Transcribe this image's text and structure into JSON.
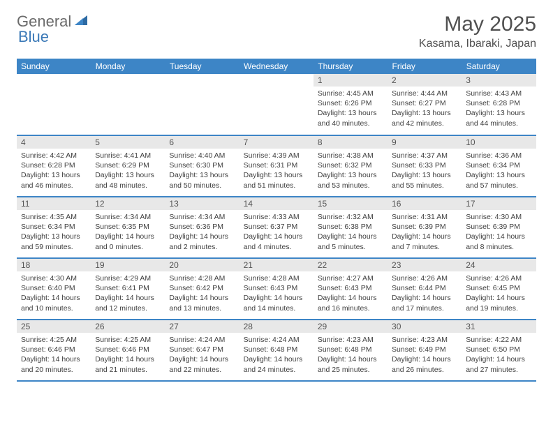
{
  "brand": {
    "part1": "General",
    "part2": "Blue"
  },
  "title": "May 2025",
  "location": "Kasama, Ibaraki, Japan",
  "colors": {
    "header_bg": "#3d85c6",
    "header_text": "#ffffff",
    "daynum_bg": "#e8e8e8",
    "text": "#404040",
    "row_divider": "#3d85c6"
  },
  "layout": {
    "cols": 7,
    "rows": 5,
    "first_day_col": 4
  },
  "weekdays": [
    "Sunday",
    "Monday",
    "Tuesday",
    "Wednesday",
    "Thursday",
    "Friday",
    "Saturday"
  ],
  "days": [
    {
      "n": 1,
      "sunrise": "4:45 AM",
      "sunset": "6:26 PM",
      "daylight": "13 hours and 40 minutes."
    },
    {
      "n": 2,
      "sunrise": "4:44 AM",
      "sunset": "6:27 PM",
      "daylight": "13 hours and 42 minutes."
    },
    {
      "n": 3,
      "sunrise": "4:43 AM",
      "sunset": "6:28 PM",
      "daylight": "13 hours and 44 minutes."
    },
    {
      "n": 4,
      "sunrise": "4:42 AM",
      "sunset": "6:28 PM",
      "daylight": "13 hours and 46 minutes."
    },
    {
      "n": 5,
      "sunrise": "4:41 AM",
      "sunset": "6:29 PM",
      "daylight": "13 hours and 48 minutes."
    },
    {
      "n": 6,
      "sunrise": "4:40 AM",
      "sunset": "6:30 PM",
      "daylight": "13 hours and 50 minutes."
    },
    {
      "n": 7,
      "sunrise": "4:39 AM",
      "sunset": "6:31 PM",
      "daylight": "13 hours and 51 minutes."
    },
    {
      "n": 8,
      "sunrise": "4:38 AM",
      "sunset": "6:32 PM",
      "daylight": "13 hours and 53 minutes."
    },
    {
      "n": 9,
      "sunrise": "4:37 AM",
      "sunset": "6:33 PM",
      "daylight": "13 hours and 55 minutes."
    },
    {
      "n": 10,
      "sunrise": "4:36 AM",
      "sunset": "6:34 PM",
      "daylight": "13 hours and 57 minutes."
    },
    {
      "n": 11,
      "sunrise": "4:35 AM",
      "sunset": "6:34 PM",
      "daylight": "13 hours and 59 minutes."
    },
    {
      "n": 12,
      "sunrise": "4:34 AM",
      "sunset": "6:35 PM",
      "daylight": "14 hours and 0 minutes."
    },
    {
      "n": 13,
      "sunrise": "4:34 AM",
      "sunset": "6:36 PM",
      "daylight": "14 hours and 2 minutes."
    },
    {
      "n": 14,
      "sunrise": "4:33 AM",
      "sunset": "6:37 PM",
      "daylight": "14 hours and 4 minutes."
    },
    {
      "n": 15,
      "sunrise": "4:32 AM",
      "sunset": "6:38 PM",
      "daylight": "14 hours and 5 minutes."
    },
    {
      "n": 16,
      "sunrise": "4:31 AM",
      "sunset": "6:39 PM",
      "daylight": "14 hours and 7 minutes."
    },
    {
      "n": 17,
      "sunrise": "4:30 AM",
      "sunset": "6:39 PM",
      "daylight": "14 hours and 8 minutes."
    },
    {
      "n": 18,
      "sunrise": "4:30 AM",
      "sunset": "6:40 PM",
      "daylight": "14 hours and 10 minutes."
    },
    {
      "n": 19,
      "sunrise": "4:29 AM",
      "sunset": "6:41 PM",
      "daylight": "14 hours and 12 minutes."
    },
    {
      "n": 20,
      "sunrise": "4:28 AM",
      "sunset": "6:42 PM",
      "daylight": "14 hours and 13 minutes."
    },
    {
      "n": 21,
      "sunrise": "4:28 AM",
      "sunset": "6:43 PM",
      "daylight": "14 hours and 14 minutes."
    },
    {
      "n": 22,
      "sunrise": "4:27 AM",
      "sunset": "6:43 PM",
      "daylight": "14 hours and 16 minutes."
    },
    {
      "n": 23,
      "sunrise": "4:26 AM",
      "sunset": "6:44 PM",
      "daylight": "14 hours and 17 minutes."
    },
    {
      "n": 24,
      "sunrise": "4:26 AM",
      "sunset": "6:45 PM",
      "daylight": "14 hours and 19 minutes."
    },
    {
      "n": 25,
      "sunrise": "4:25 AM",
      "sunset": "6:46 PM",
      "daylight": "14 hours and 20 minutes."
    },
    {
      "n": 26,
      "sunrise": "4:25 AM",
      "sunset": "6:46 PM",
      "daylight": "14 hours and 21 minutes."
    },
    {
      "n": 27,
      "sunrise": "4:24 AM",
      "sunset": "6:47 PM",
      "daylight": "14 hours and 22 minutes."
    },
    {
      "n": 28,
      "sunrise": "4:24 AM",
      "sunset": "6:48 PM",
      "daylight": "14 hours and 24 minutes."
    },
    {
      "n": 29,
      "sunrise": "4:23 AM",
      "sunset": "6:48 PM",
      "daylight": "14 hours and 25 minutes."
    },
    {
      "n": 30,
      "sunrise": "4:23 AM",
      "sunset": "6:49 PM",
      "daylight": "14 hours and 26 minutes."
    },
    {
      "n": 31,
      "sunrise": "4:22 AM",
      "sunset": "6:50 PM",
      "daylight": "14 hours and 27 minutes."
    }
  ],
  "labels": {
    "sunrise": "Sunrise:",
    "sunset": "Sunset:",
    "daylight": "Daylight:"
  }
}
